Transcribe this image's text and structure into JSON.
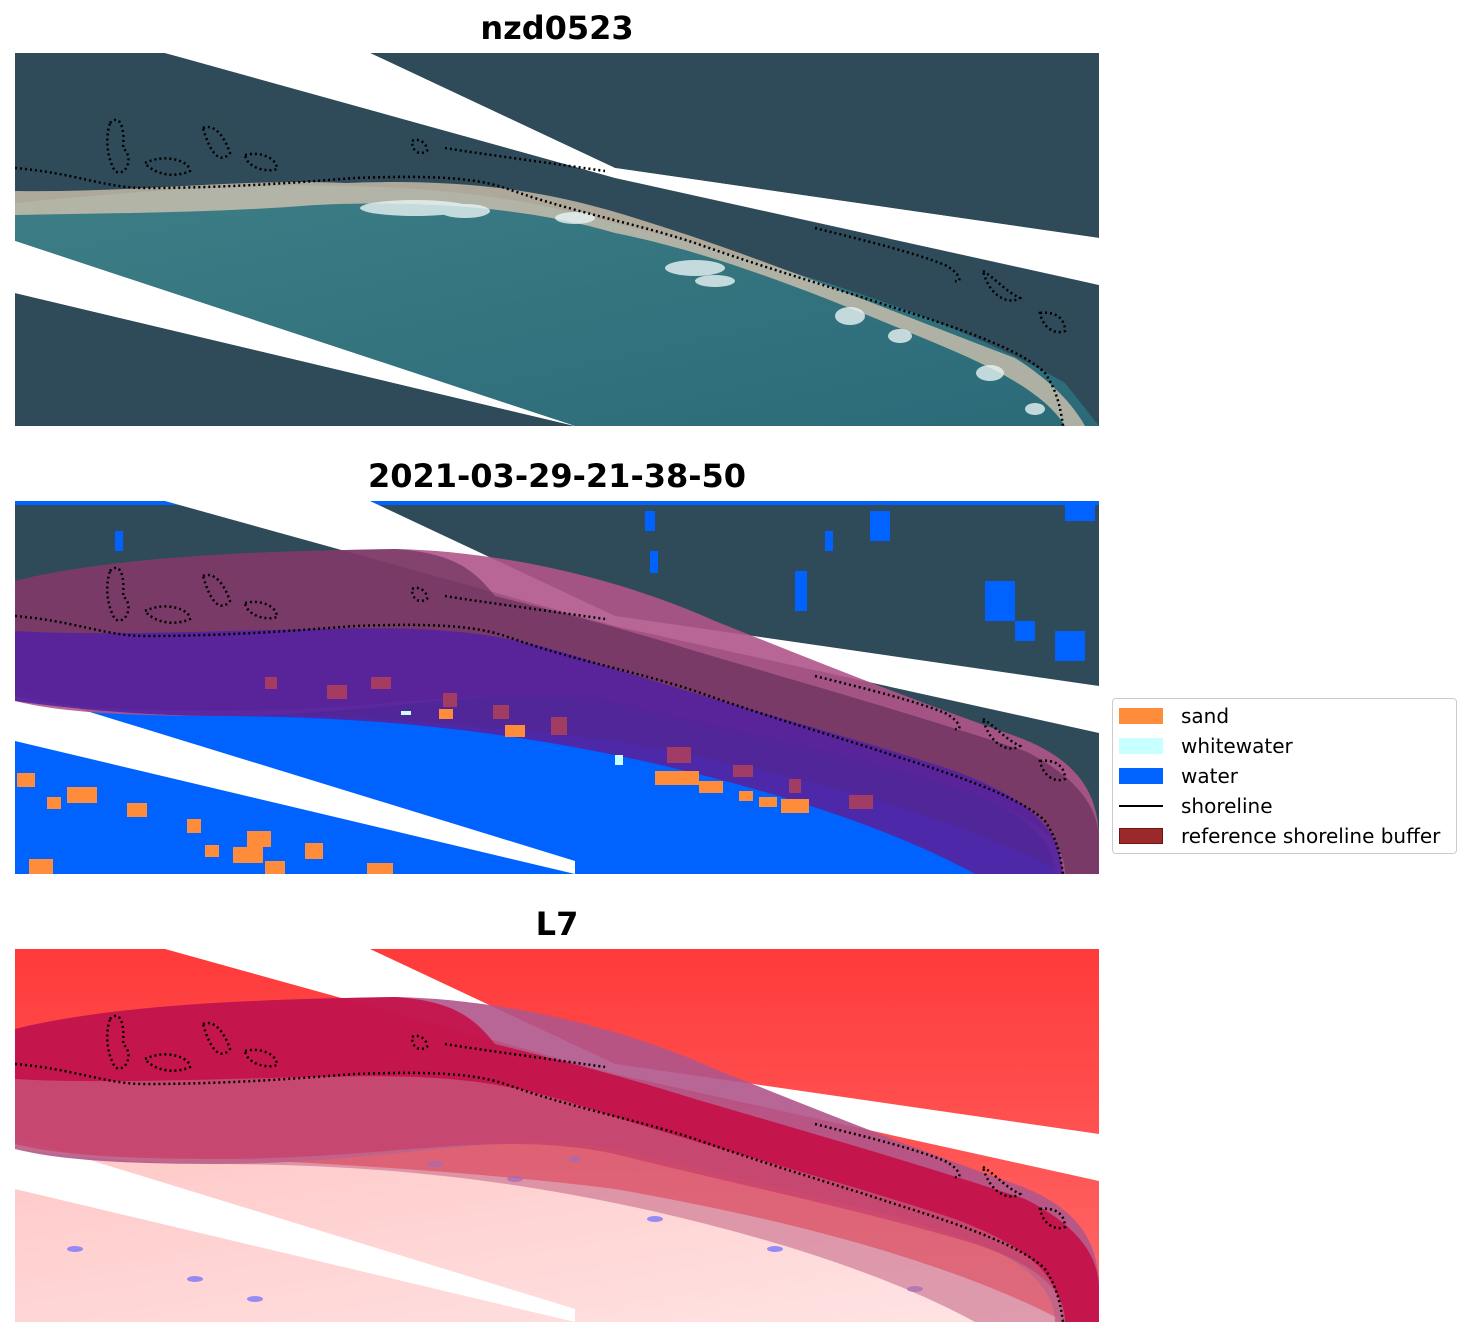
{
  "panels": [
    {
      "title": "nzd0523"
    },
    {
      "title": "2021-03-29-21-38-50"
    },
    {
      "title": "L7"
    }
  ],
  "legend": {
    "items": [
      {
        "label": "sand",
        "color": "#ff8c3a",
        "kind": "patch"
      },
      {
        "label": "whitewater",
        "color": "#c8ffff",
        "kind": "patch"
      },
      {
        "label": "water",
        "color": "#0062ff",
        "kind": "patch"
      },
      {
        "label": "shoreline",
        "color": "#000000",
        "kind": "line"
      },
      {
        "label": "reference shoreline buffer",
        "color": "#9a2a2a",
        "kind": "patch"
      }
    ]
  },
  "colors": {
    "land": "#2f4b5a",
    "lagoon": "#2d6f7c",
    "beach": "#d9c7b2",
    "water_class": "#0062ff",
    "buffer": "#9a2a4a",
    "buffer_overlay": "#6a2a8a",
    "index_high": "#ff1a1a",
    "index_low": "#ffd8d8",
    "shoreline": "#000000"
  }
}
